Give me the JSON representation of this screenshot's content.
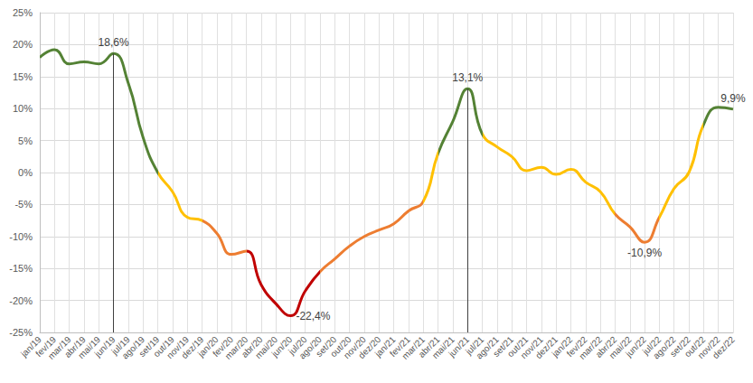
{
  "chart_data": {
    "type": "line",
    "categories": [
      "jan/19",
      "fev/19",
      "mar/19",
      "abr/19",
      "mai/19",
      "jun/19",
      "jul/19",
      "ago/19",
      "set/19",
      "out/19",
      "nov/19",
      "dez/19",
      "jan/20",
      "fev/20",
      "mar/20",
      "abr/20",
      "mai/20",
      "jun/20",
      "jul/20",
      "ago/20",
      "set/20",
      "out/20",
      "nov/20",
      "dez/20",
      "jan/21",
      "fev/21",
      "mar/21",
      "abr/21",
      "mai/21",
      "jun/21",
      "jul/21",
      "ago/21",
      "set/21",
      "out/21",
      "nov/21",
      "dez/21",
      "jan/22",
      "fev/22",
      "mar/22",
      "abr/22",
      "mai/22",
      "jun/22",
      "jul/22",
      "ago/22",
      "set/22",
      "out/22",
      "nov/22",
      "dez/22"
    ],
    "values": [
      18,
      19.2,
      17,
      17.3,
      17,
      18.6,
      14,
      5.5,
      0,
      -3,
      -7,
      -7.5,
      -9.5,
      -12.8,
      -12.3,
      -17.5,
      -20.5,
      -22.4,
      -18.5,
      -15.5,
      -13.5,
      -11.5,
      -10,
      -9,
      -8,
      -6,
      -4.5,
      3,
      8,
      13.1,
      6,
      4,
      2.5,
      0.3,
      0.8,
      -0.3,
      0.5,
      -1.5,
      -3,
      -6.5,
      -8.5,
      -10.9,
      -7,
      -2.5,
      0,
      7.5,
      10.2,
      9.9
    ],
    "colors": [
      "#548235",
      "#548235",
      "#548235",
      "#548235",
      "#548235",
      "#548235",
      "#548235",
      "#548235",
      "#ffc000",
      "#ffc000",
      "#ffc000",
      "#ed7d31",
      "#ed7d31",
      "#ed7d31",
      "#c00000",
      "#c00000",
      "#c00000",
      "#c00000",
      "#c00000",
      "#ed7d31",
      "#ed7d31",
      "#ed7d31",
      "#ed7d31",
      "#ed7d31",
      "#ed7d31",
      "#ed7d31",
      "#ffc000",
      "#548235",
      "#548235",
      "#548235",
      "#ffc000",
      "#ffc000",
      "#ffc000",
      "#ffc000",
      "#ffc000",
      "#ffc000",
      "#ffc000",
      "#ffc000",
      "#ffc000",
      "#ed7d31",
      "#ed7d31",
      "#ed7d31",
      "#ffc000",
      "#ffc000",
      "#ffc000",
      "#548235",
      "#548235",
      "#548235"
    ],
    "ylim": [
      -25,
      25
    ],
    "yticks": [
      {
        "value": -25,
        "label": "-25%"
      },
      {
        "value": -20,
        "label": "-20%"
      },
      {
        "value": -15,
        "label": "-15%"
      },
      {
        "value": -10,
        "label": "-10%"
      },
      {
        "value": -5,
        "label": "-5%"
      },
      {
        "value": 0,
        "label": "0%"
      },
      {
        "value": 5,
        "label": "5%"
      },
      {
        "value": 10,
        "label": "10%"
      },
      {
        "value": 15,
        "label": "15%"
      },
      {
        "value": 20,
        "label": "20%"
      },
      {
        "value": 25,
        "label": "25%"
      }
    ],
    "grid": true,
    "annotations": [
      {
        "x": "jun/19",
        "text": "18,6%",
        "drop_line": true
      },
      {
        "x": "jun/20",
        "text": "-22,4%"
      },
      {
        "x": "jun/21",
        "text": "13,1%",
        "drop_line": true
      },
      {
        "x": "jun/22",
        "text": "-10,9%"
      },
      {
        "x": "dez/22",
        "text": "9,9%"
      }
    ]
  }
}
